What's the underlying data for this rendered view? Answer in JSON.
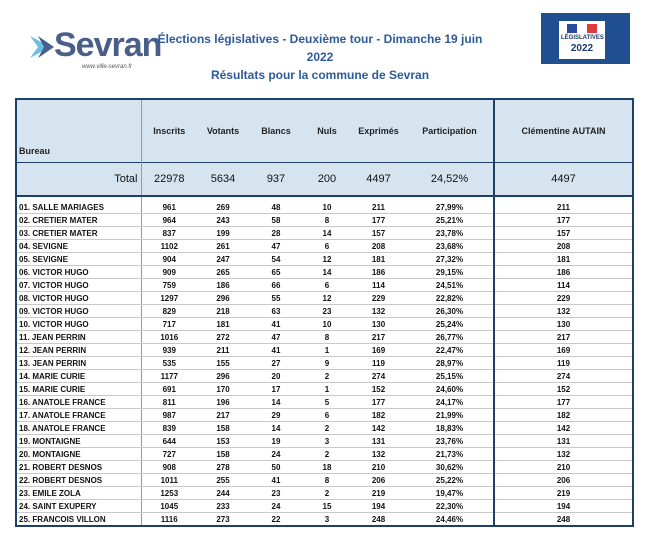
{
  "logo": {
    "name": "Sevran",
    "url": "www.ville-sevran.fr"
  },
  "title_line1": "Élections législatives - Deuxième tour - Dimanche 19 juin 2022",
  "title_line2": "Résultats pour la commune de Sevran",
  "badge": {
    "line1": "LÉGISLATIVES",
    "line2": "2022"
  },
  "colors": {
    "header_bg": "#d6e4f0",
    "border": "#1e3f66",
    "title": "#2d5a9a"
  },
  "table": {
    "columns": [
      "Bureau",
      "Inscrits",
      "Votants",
      "Blancs",
      "Nuls",
      "Exprimés",
      "Participation",
      "Clémentine AUTAIN"
    ],
    "total": {
      "label": "Total",
      "inscrits": "22978",
      "votants": "5634",
      "blancs": "937",
      "nuls": "200",
      "exprimes": "4497",
      "participation": "24,52%",
      "autain": "4497"
    },
    "rows": [
      [
        "01. SALLE MARIAGES",
        "961",
        "269",
        "48",
        "10",
        "211",
        "27,99%",
        "211"
      ],
      [
        "02. CRETIER MATER",
        "964",
        "243",
        "58",
        "8",
        "177",
        "25,21%",
        "177"
      ],
      [
        "03. CRETIER MATER",
        "837",
        "199",
        "28",
        "14",
        "157",
        "23,78%",
        "157"
      ],
      [
        "04. SEVIGNE",
        "1102",
        "261",
        "47",
        "6",
        "208",
        "23,68%",
        "208"
      ],
      [
        "05. SEVIGNE",
        "904",
        "247",
        "54",
        "12",
        "181",
        "27,32%",
        "181"
      ],
      [
        "06. VICTOR HUGO",
        "909",
        "265",
        "65",
        "14",
        "186",
        "29,15%",
        "186"
      ],
      [
        "07. VICTOR HUGO",
        "759",
        "186",
        "66",
        "6",
        "114",
        "24,51%",
        "114"
      ],
      [
        "08. VICTOR HUGO",
        "1297",
        "296",
        "55",
        "12",
        "229",
        "22,82%",
        "229"
      ],
      [
        "09. VICTOR HUGO",
        "829",
        "218",
        "63",
        "23",
        "132",
        "26,30%",
        "132"
      ],
      [
        "10. VICTOR HUGO",
        "717",
        "181",
        "41",
        "10",
        "130",
        "25,24%",
        "130"
      ],
      [
        "11. JEAN PERRIN",
        "1016",
        "272",
        "47",
        "8",
        "217",
        "26,77%",
        "217"
      ],
      [
        "12. JEAN PERRIN",
        "939",
        "211",
        "41",
        "1",
        "169",
        "22,47%",
        "169"
      ],
      [
        "13. JEAN PERRIN",
        "535",
        "155",
        "27",
        "9",
        "119",
        "28,97%",
        "119"
      ],
      [
        "14. MARIE CURIE",
        "1177",
        "296",
        "20",
        "2",
        "274",
        "25,15%",
        "274"
      ],
      [
        "15. MARIE CURIE",
        "691",
        "170",
        "17",
        "1",
        "152",
        "24,60%",
        "152"
      ],
      [
        "16. ANATOLE FRANCE",
        "811",
        "196",
        "14",
        "5",
        "177",
        "24,17%",
        "177"
      ],
      [
        "17. ANATOLE FRANCE",
        "987",
        "217",
        "29",
        "6",
        "182",
        "21,99%",
        "182"
      ],
      [
        "18. ANATOLE FRANCE",
        "839",
        "158",
        "14",
        "2",
        "142",
        "18,83%",
        "142"
      ],
      [
        "19. MONTAIGNE",
        "644",
        "153",
        "19",
        "3",
        "131",
        "23,76%",
        "131"
      ],
      [
        "20. MONTAIGNE",
        "727",
        "158",
        "24",
        "2",
        "132",
        "21,73%",
        "132"
      ],
      [
        "21. ROBERT DESNOS",
        "908",
        "278",
        "50",
        "18",
        "210",
        "30,62%",
        "210"
      ],
      [
        "22. ROBERT DESNOS",
        "1011",
        "255",
        "41",
        "8",
        "206",
        "25,22%",
        "206"
      ],
      [
        "23. EMILE ZOLA",
        "1253",
        "244",
        "23",
        "2",
        "219",
        "19,47%",
        "219"
      ],
      [
        "24. SAINT EXUPERY",
        "1045",
        "233",
        "24",
        "15",
        "194",
        "22,30%",
        "194"
      ],
      [
        "25. FRANCOIS VILLON",
        "1116",
        "273",
        "22",
        "3",
        "248",
        "24,46%",
        "248"
      ]
    ]
  }
}
